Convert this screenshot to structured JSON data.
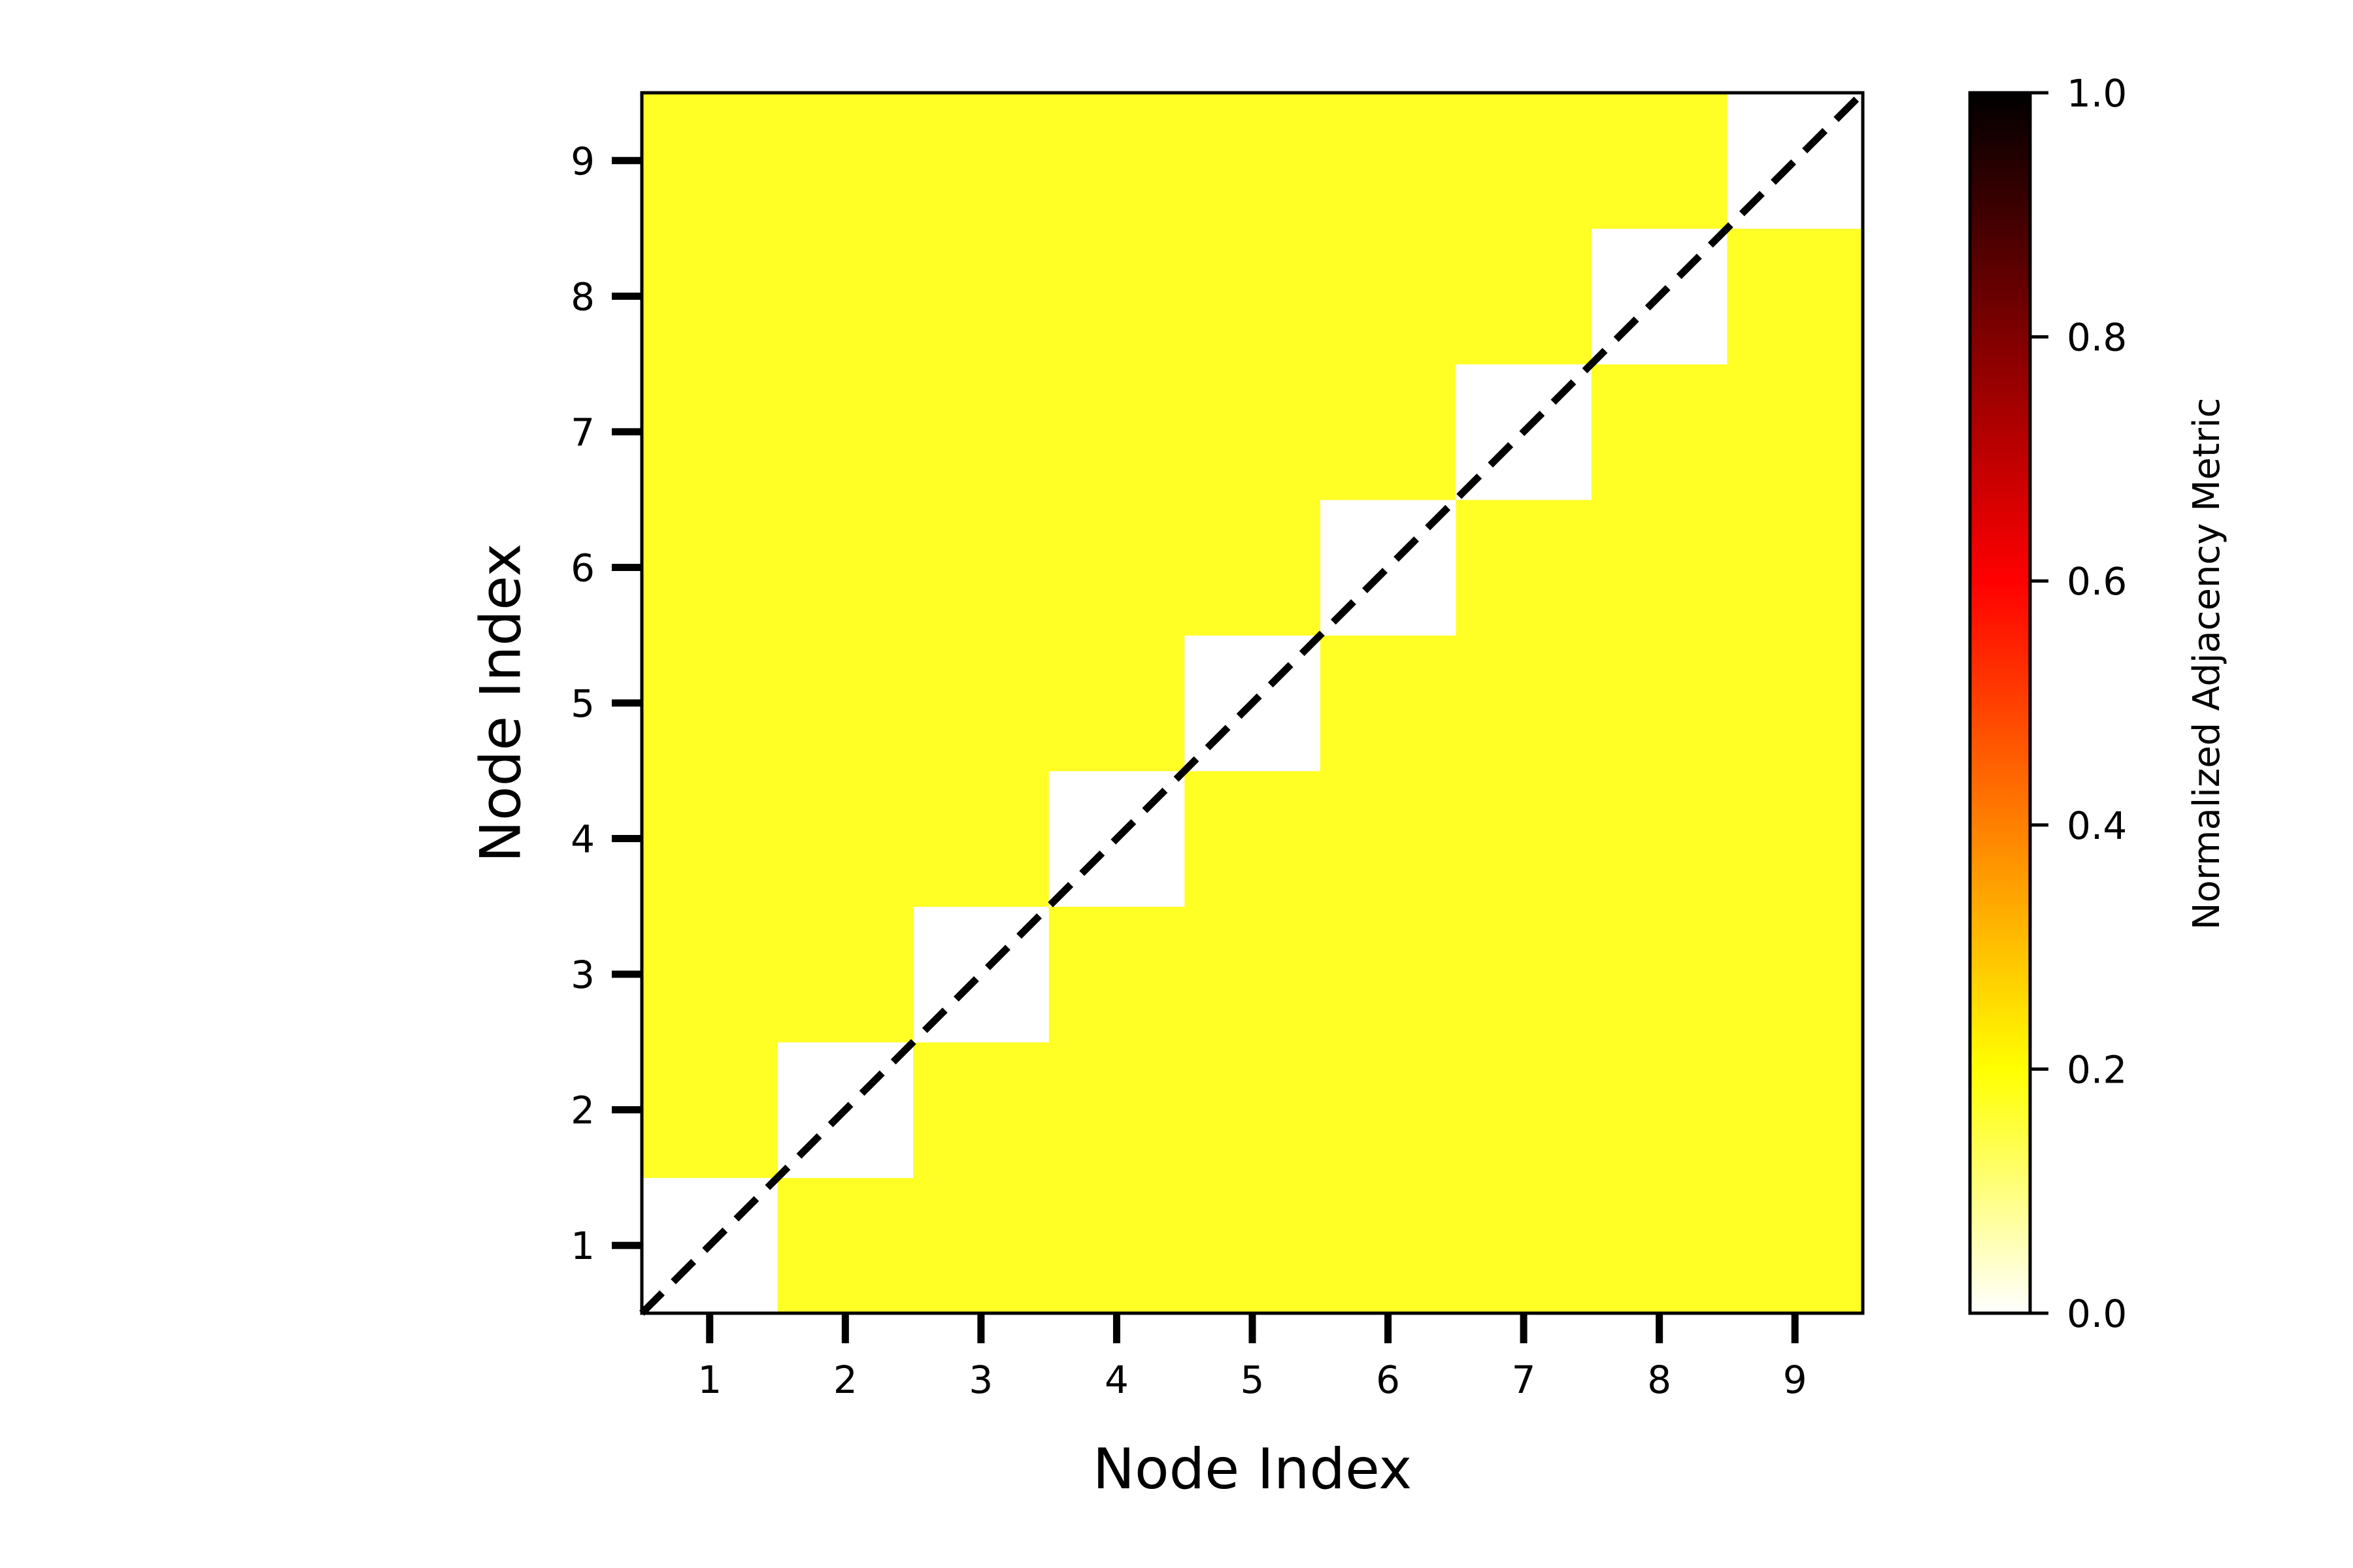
{
  "chart_data": {
    "type": "heatmap",
    "title": "",
    "xlabel": "Node Index",
    "ylabel": "Node Index",
    "x_categories": [
      "1",
      "2",
      "3",
      "4",
      "5",
      "6",
      "7",
      "8",
      "9"
    ],
    "y_categories": [
      "1",
      "2",
      "3",
      "4",
      "5",
      "6",
      "7",
      "8",
      "9"
    ],
    "values": [
      [
        0.0,
        0.17,
        0.17,
        0.17,
        0.17,
        0.17,
        0.17,
        0.17,
        0.17
      ],
      [
        0.17,
        0.0,
        0.17,
        0.17,
        0.17,
        0.17,
        0.17,
        0.17,
        0.17
      ],
      [
        0.17,
        0.17,
        0.0,
        0.17,
        0.17,
        0.17,
        0.17,
        0.17,
        0.17
      ],
      [
        0.17,
        0.17,
        0.17,
        0.0,
        0.17,
        0.17,
        0.17,
        0.17,
        0.17
      ],
      [
        0.17,
        0.17,
        0.17,
        0.17,
        0.0,
        0.17,
        0.17,
        0.17,
        0.17
      ],
      [
        0.17,
        0.17,
        0.17,
        0.17,
        0.17,
        0.0,
        0.17,
        0.17,
        0.17
      ],
      [
        0.17,
        0.17,
        0.17,
        0.17,
        0.17,
        0.17,
        0.0,
        0.17,
        0.17
      ],
      [
        0.17,
        0.17,
        0.17,
        0.17,
        0.17,
        0.17,
        0.17,
        0.0,
        0.17
      ],
      [
        0.17,
        0.17,
        0.17,
        0.17,
        0.17,
        0.17,
        0.17,
        0.17,
        0.0
      ]
    ],
    "colormap": "hot_r",
    "colorbar": {
      "label": "Normalized Adjacency Metric",
      "range": [
        0.0,
        1.0
      ],
      "ticks": [
        "0.0",
        "0.2",
        "0.4",
        "0.6",
        "0.8",
        "1.0"
      ],
      "stops": [
        "#ffffff",
        "#ffff00",
        "#ff8000",
        "#ff0000",
        "#800000",
        "#000000"
      ]
    },
    "diagonal_line": {
      "style": "dashed",
      "color": "#000000"
    },
    "grid": false
  }
}
